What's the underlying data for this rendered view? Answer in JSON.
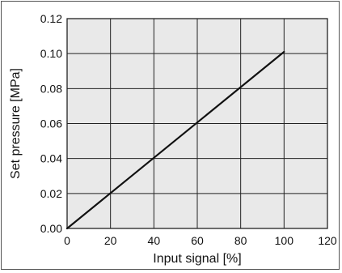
{
  "chart_data": {
    "type": "line",
    "title": "",
    "xlabel": "Input signal [%]",
    "ylabel": "Set pressure [MPa]",
    "xlim": [
      0,
      120
    ],
    "ylim": [
      0,
      0.12
    ],
    "x_ticks": [
      "0",
      "20",
      "40",
      "60",
      "80",
      "100",
      "120"
    ],
    "y_ticks": [
      "0.00",
      "0.02",
      "0.04",
      "0.06",
      "0.08",
      "0.10",
      "0.12"
    ],
    "grid": true,
    "legend": "none",
    "series": [
      {
        "x": [
          0,
          100
        ],
        "y": [
          0.0,
          0.101
        ]
      }
    ]
  },
  "colors": {
    "plot_background": "#e9e9e9",
    "grid": "#222222",
    "line": "#111111"
  }
}
